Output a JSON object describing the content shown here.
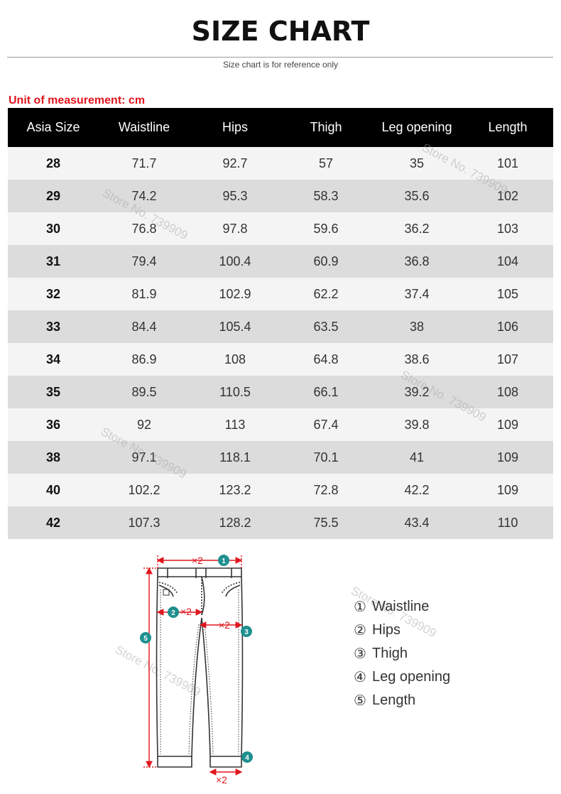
{
  "header": {
    "title": "SIZE CHART",
    "subtitle": "Size chart is for reference only"
  },
  "unit_label": "Unit of measurement: cm",
  "table": {
    "columns": [
      "Asia Size",
      "Waistline",
      "Hips",
      "Thigh",
      "Leg opening",
      "Length"
    ],
    "rows": [
      [
        "28",
        "71.7",
        "92.7",
        "57",
        "35",
        "101"
      ],
      [
        "29",
        "74.2",
        "95.3",
        "58.3",
        "35.6",
        "102"
      ],
      [
        "30",
        "76.8",
        "97.8",
        "59.6",
        "36.2",
        "103"
      ],
      [
        "31",
        "79.4",
        "100.4",
        "60.9",
        "36.8",
        "104"
      ],
      [
        "32",
        "81.9",
        "102.9",
        "62.2",
        "37.4",
        "105"
      ],
      [
        "33",
        "84.4",
        "105.4",
        "63.5",
        "38",
        "106"
      ],
      [
        "34",
        "86.9",
        "108",
        "64.8",
        "38.6",
        "107"
      ],
      [
        "35",
        "89.5",
        "110.5",
        "66.1",
        "39.2",
        "108"
      ],
      [
        "36",
        "92",
        "113",
        "67.4",
        "39.8",
        "109"
      ],
      [
        "38",
        "97.1",
        "118.1",
        "70.1",
        "41",
        "109"
      ],
      [
        "40",
        "102.2",
        "123.2",
        "72.8",
        "42.2",
        "109"
      ],
      [
        "42",
        "107.3",
        "128.2",
        "75.5",
        "43.4",
        "110"
      ]
    ]
  },
  "watermark": "Store No. 739909",
  "diagram": {
    "multiplier": "×2",
    "markers": [
      "1",
      "2",
      "3",
      "4",
      "5"
    ],
    "colors": {
      "measure_line": "#e0161e",
      "marker": "#1f8f8f",
      "outline": "#333333"
    }
  },
  "legend": [
    {
      "num": "①",
      "label": "Waistline"
    },
    {
      "num": "②",
      "label": "Hips"
    },
    {
      "num": "③",
      "label": "Thigh"
    },
    {
      "num": "④",
      "label": "Leg opening"
    },
    {
      "num": "⑤",
      "label": "Length"
    }
  ]
}
